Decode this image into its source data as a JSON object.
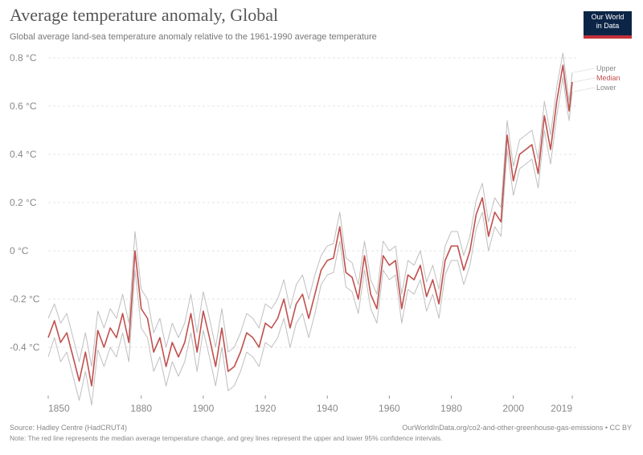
{
  "header": {
    "title": "Average temperature anomaly, Global",
    "subtitle": "Global average land-sea temperature anomaly relative to the 1961-1990 average temperature"
  },
  "logo": {
    "line1": "Our World",
    "line2": "in Data",
    "bg": "#0c2547",
    "accent": "#c4323a"
  },
  "footer": {
    "source": "Source: Hadley Centre (HadCRUT4)",
    "license": "OurWorldInData.org/co2-and-other-greenhouse-gas-emissions • CC BY",
    "note": "Note: The red line represents the median average temperature change, and grey lines represent the upper and lower 95% confidence intervals."
  },
  "colors": {
    "median": "#c0504d",
    "bounds": "#b8b8b8",
    "grid": "#e6e6e6",
    "axis_text": "#888888"
  },
  "chart_data": {
    "type": "line",
    "title": "Average temperature anomaly, Global",
    "xlabel": "",
    "ylabel": "",
    "xlim": [
      1850,
      2019
    ],
    "ylim": [
      -0.6,
      0.82
    ],
    "xticks": [
      1850,
      1880,
      1900,
      1920,
      1940,
      1960,
      1980,
      2000,
      2019
    ],
    "xtick_labels": [
      "1850",
      "1880",
      "1900",
      "1920",
      "1940",
      "1960",
      "1980",
      "2000",
      "2019"
    ],
    "yticks": [
      0.8,
      0.6,
      0.4,
      0.2,
      0.0,
      -0.2,
      -0.4
    ],
    "ytick_labels": [
      "0.8 °C",
      "0.6 °C",
      "0.4 °C",
      "0.2 °C",
      "0 °C",
      "-0.2 °C",
      "-0.4 °C"
    ],
    "grid": true,
    "legend_position": "top-right",
    "legend": [
      "Upper",
      "Median",
      "Lower"
    ],
    "x": [
      1850,
      1852,
      1854,
      1856,
      1858,
      1860,
      1862,
      1864,
      1866,
      1868,
      1870,
      1872,
      1874,
      1876,
      1878,
      1880,
      1882,
      1884,
      1886,
      1888,
      1890,
      1892,
      1894,
      1896,
      1898,
      1900,
      1902,
      1904,
      1906,
      1908,
      1910,
      1912,
      1914,
      1916,
      1918,
      1920,
      1922,
      1924,
      1926,
      1928,
      1930,
      1932,
      1934,
      1936,
      1938,
      1940,
      1942,
      1944,
      1946,
      1948,
      1950,
      1952,
      1954,
      1956,
      1958,
      1960,
      1962,
      1964,
      1966,
      1968,
      1970,
      1972,
      1974,
      1976,
      1978,
      1980,
      1982,
      1984,
      1986,
      1988,
      1990,
      1992,
      1994,
      1996,
      1998,
      2000,
      2002,
      2004,
      2006,
      2008,
      2010,
      2012,
      2014,
      2016,
      2017,
      2018,
      2019
    ],
    "series": [
      {
        "name": "Upper",
        "values": [
          -0.28,
          -0.22,
          -0.3,
          -0.26,
          -0.36,
          -0.46,
          -0.34,
          -0.48,
          -0.25,
          -0.32,
          -0.24,
          -0.28,
          -0.18,
          -0.3,
          0.08,
          -0.16,
          -0.2,
          -0.34,
          -0.28,
          -0.4,
          -0.3,
          -0.36,
          -0.3,
          -0.18,
          -0.34,
          -0.17,
          -0.28,
          -0.4,
          -0.24,
          -0.42,
          -0.4,
          -0.34,
          -0.26,
          -0.28,
          -0.32,
          -0.22,
          -0.24,
          -0.2,
          -0.12,
          -0.24,
          -0.14,
          -0.1,
          -0.2,
          -0.1,
          -0.02,
          0.02,
          0.03,
          0.16,
          -0.03,
          -0.05,
          -0.14,
          0.04,
          -0.12,
          -0.18,
          0.04,
          0.0,
          0.02,
          -0.18,
          -0.04,
          -0.06,
          0.0,
          -0.13,
          -0.06,
          -0.16,
          0.02,
          0.08,
          0.08,
          -0.02,
          0.06,
          0.21,
          0.28,
          0.12,
          0.22,
          0.18,
          0.54,
          0.35,
          0.46,
          0.48,
          0.5,
          0.38,
          0.62,
          0.48,
          0.68,
          0.82,
          0.72,
          0.62,
          0.74
        ]
      },
      {
        "name": "Median",
        "values": [
          -0.36,
          -0.29,
          -0.38,
          -0.34,
          -0.44,
          -0.54,
          -0.42,
          -0.56,
          -0.33,
          -0.4,
          -0.32,
          -0.36,
          -0.26,
          -0.38,
          0.0,
          -0.24,
          -0.28,
          -0.42,
          -0.36,
          -0.48,
          -0.38,
          -0.44,
          -0.38,
          -0.26,
          -0.42,
          -0.25,
          -0.36,
          -0.48,
          -0.32,
          -0.5,
          -0.48,
          -0.42,
          -0.34,
          -0.36,
          -0.4,
          -0.3,
          -0.32,
          -0.28,
          -0.2,
          -0.32,
          -0.22,
          -0.18,
          -0.28,
          -0.18,
          -0.08,
          -0.04,
          -0.03,
          0.1,
          -0.09,
          -0.11,
          -0.2,
          -0.02,
          -0.18,
          -0.24,
          -0.02,
          -0.06,
          -0.04,
          -0.24,
          -0.1,
          -0.12,
          -0.06,
          -0.19,
          -0.12,
          -0.22,
          -0.04,
          0.02,
          0.02,
          -0.08,
          0.0,
          0.15,
          0.22,
          0.06,
          0.16,
          0.12,
          0.48,
          0.29,
          0.4,
          0.42,
          0.44,
          0.32,
          0.56,
          0.42,
          0.62,
          0.77,
          0.67,
          0.58,
          0.7
        ]
      },
      {
        "name": "Lower",
        "values": [
          -0.44,
          -0.36,
          -0.46,
          -0.42,
          -0.52,
          -0.62,
          -0.5,
          -0.64,
          -0.41,
          -0.48,
          -0.4,
          -0.44,
          -0.34,
          -0.46,
          -0.08,
          -0.32,
          -0.36,
          -0.5,
          -0.44,
          -0.56,
          -0.46,
          -0.52,
          -0.46,
          -0.34,
          -0.5,
          -0.33,
          -0.44,
          -0.56,
          -0.4,
          -0.58,
          -0.56,
          -0.5,
          -0.42,
          -0.44,
          -0.48,
          -0.38,
          -0.4,
          -0.36,
          -0.28,
          -0.4,
          -0.3,
          -0.26,
          -0.36,
          -0.26,
          -0.14,
          -0.1,
          -0.09,
          0.04,
          -0.15,
          -0.17,
          -0.26,
          -0.08,
          -0.24,
          -0.3,
          -0.08,
          -0.12,
          -0.1,
          -0.3,
          -0.16,
          -0.18,
          -0.12,
          -0.25,
          -0.18,
          -0.28,
          -0.1,
          -0.04,
          -0.04,
          -0.14,
          -0.06,
          0.09,
          0.16,
          0.0,
          0.1,
          0.06,
          0.42,
          0.23,
          0.34,
          0.36,
          0.38,
          0.26,
          0.5,
          0.36,
          0.56,
          0.72,
          0.62,
          0.54,
          0.66
        ]
      }
    ]
  }
}
